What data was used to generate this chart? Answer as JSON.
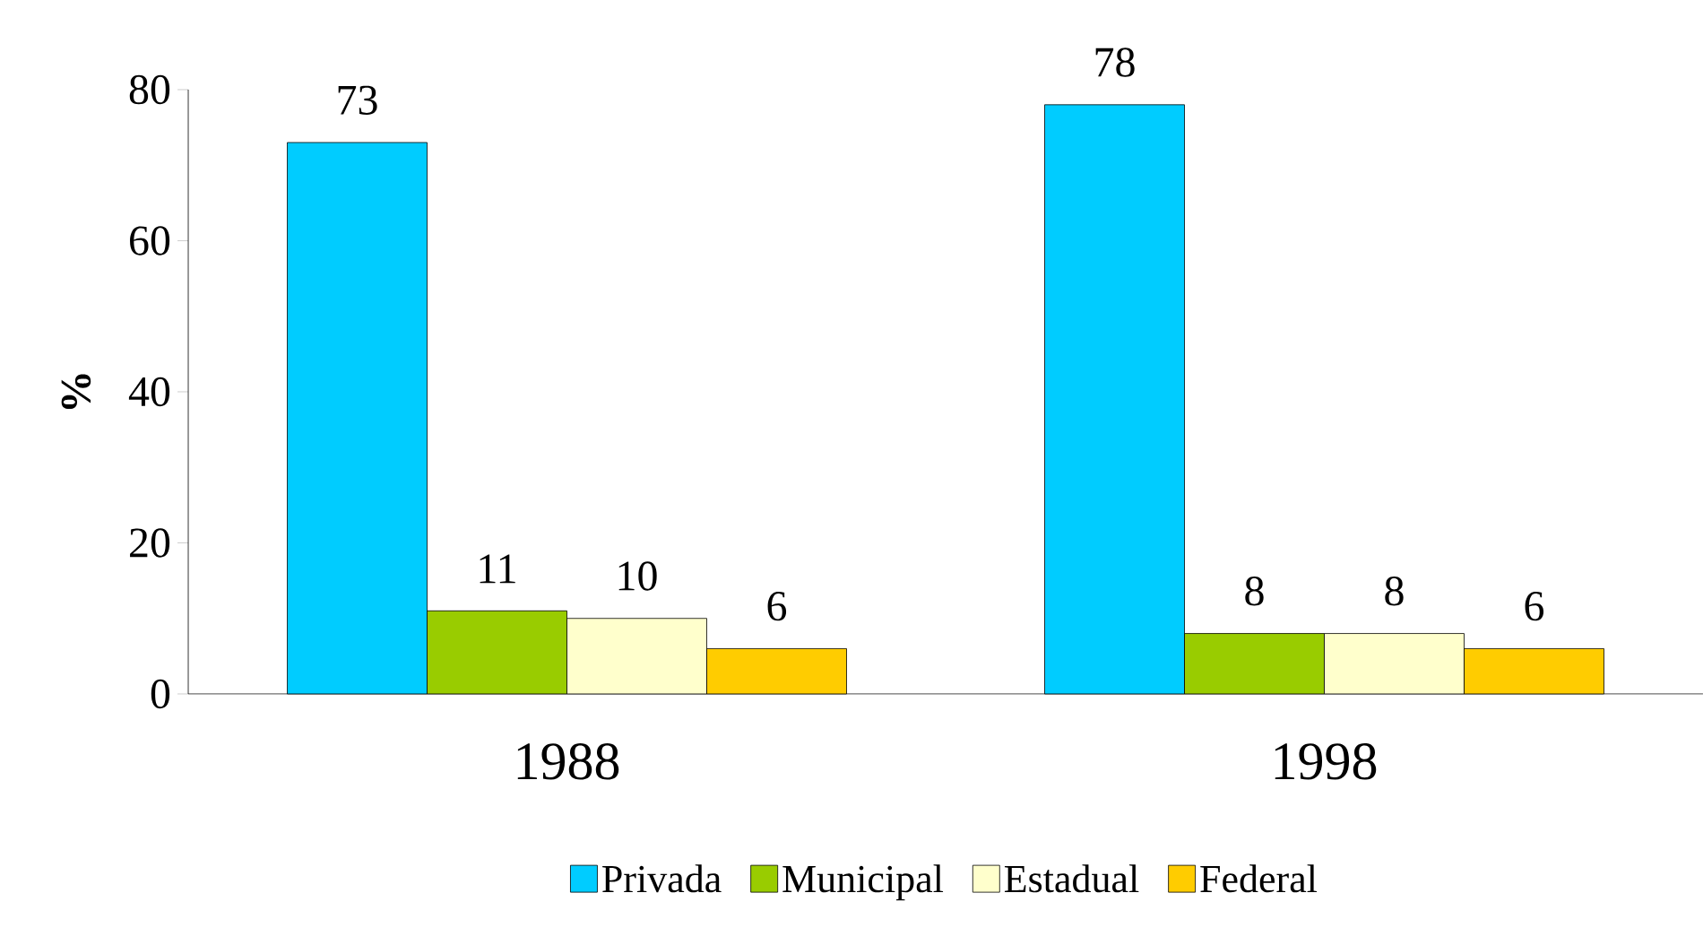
{
  "chart_data": {
    "type": "bar",
    "ylabel": "%",
    "categories": [
      "1988",
      "1998"
    ],
    "series": [
      {
        "name": "Privada",
        "color": "#00ccff",
        "values": [
          73,
          78
        ]
      },
      {
        "name": "Municipal",
        "color": "#99cc00",
        "values": [
          11,
          8
        ]
      },
      {
        "name": "Estadual",
        "color": "#ffffcc",
        "values": [
          10,
          8
        ]
      },
      {
        "name": "Federal",
        "color": "#ffcc00",
        "values": [
          6,
          6
        ]
      }
    ],
    "ylim": [
      0,
      80
    ],
    "yticks": [
      0,
      20,
      40,
      60,
      80
    ],
    "grid": false,
    "legend": "bottom",
    "data_labels": true
  }
}
